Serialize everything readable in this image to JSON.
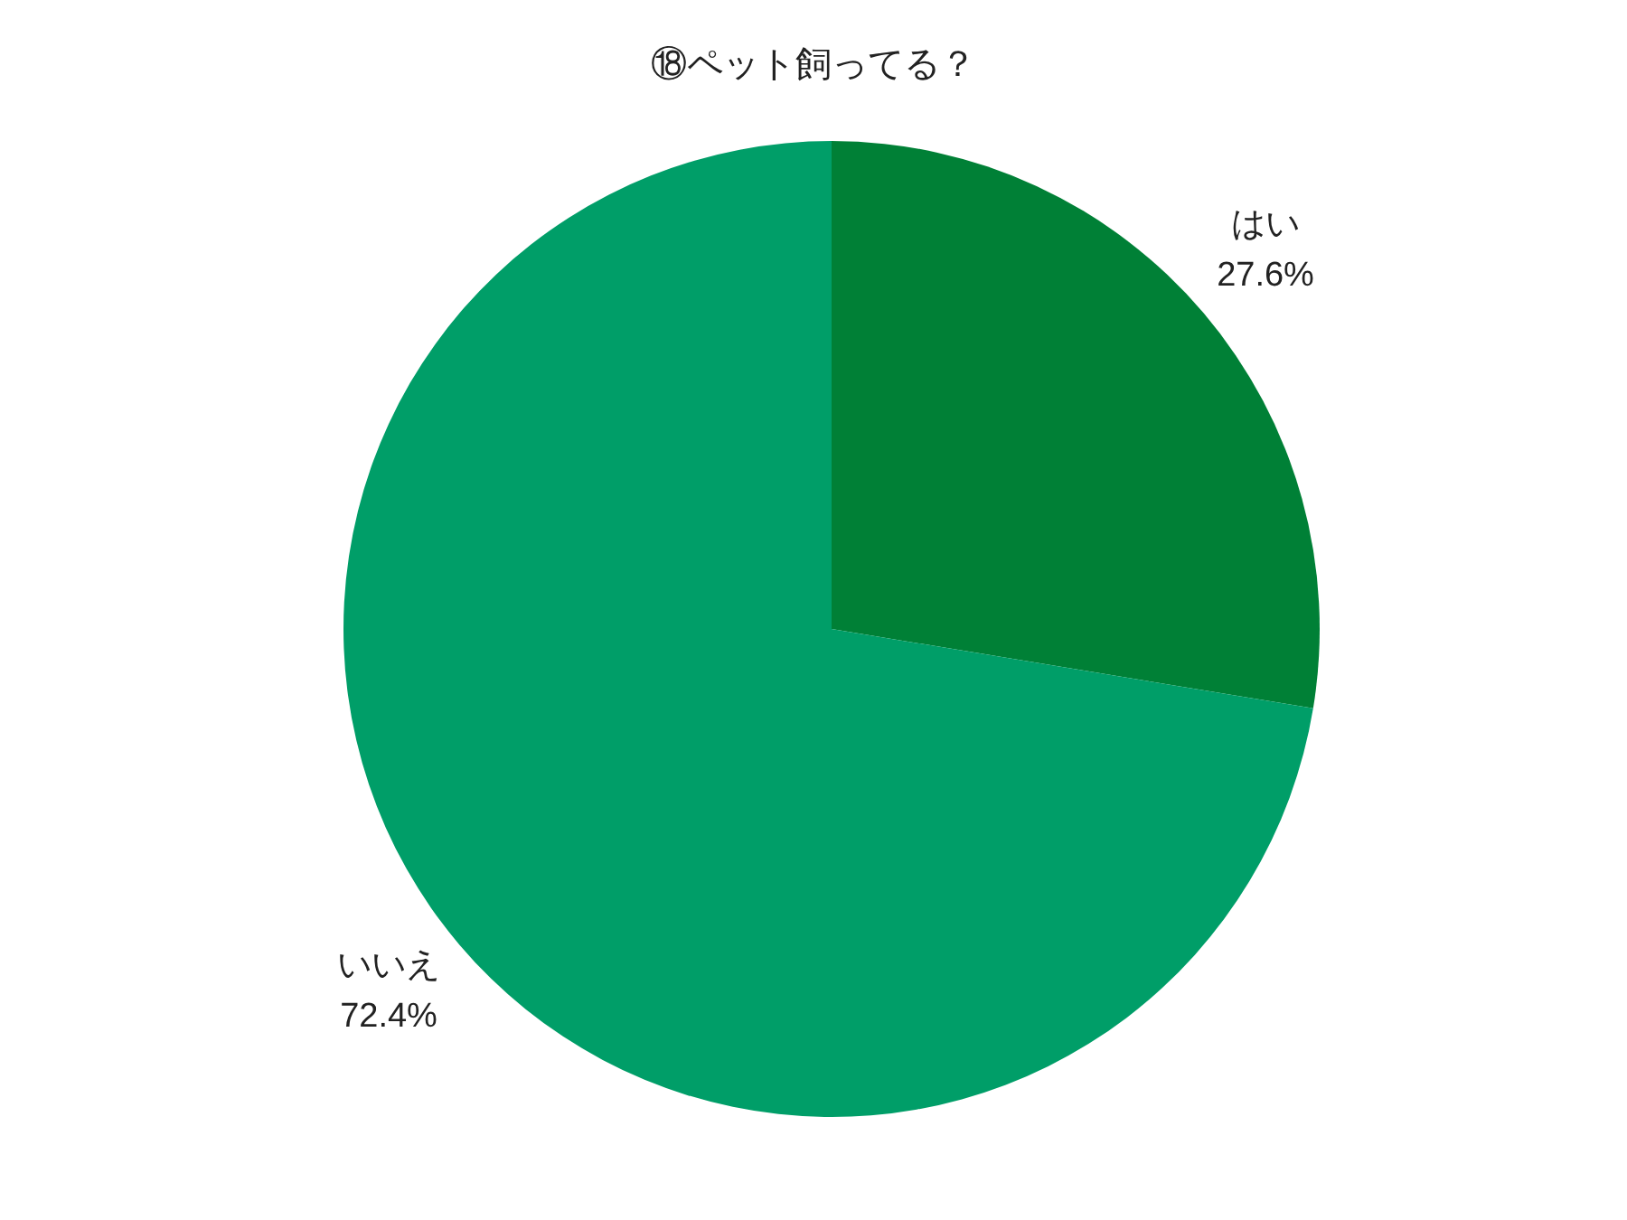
{
  "chart_data": {
    "type": "pie",
    "title": "⑱ペット飼ってる？",
    "categories": [
      "はい",
      "いいえ"
    ],
    "values": [
      27.6,
      72.4
    ],
    "colors": [
      "#008036",
      "#009e68"
    ],
    "value_labels": [
      "27.6%",
      "72.4%"
    ],
    "legend": false
  }
}
